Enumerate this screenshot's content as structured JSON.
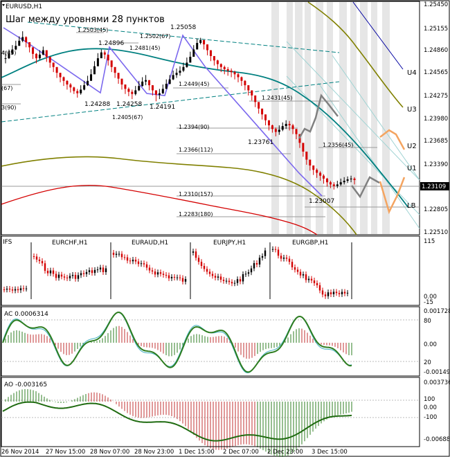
{
  "symbol_title": "EURUSD,H1",
  "annotation": "Шаг между уровнями 28 пунктов",
  "price_axis": [
    "1.25450",
    "1.25155",
    "1.24860",
    "1.24565",
    "1.24275",
    "1.23980",
    "1.23685",
    "1.23390",
    "1.22805",
    "1.22510"
  ],
  "current_price": "1.23109",
  "levels": [
    {
      "name": "U4",
      "text": "U4"
    },
    {
      "name": "U3",
      "text": "U3"
    },
    {
      "name": "U2",
      "text": "U2"
    },
    {
      "name": "U1",
      "text": "U1"
    },
    {
      "name": "LB",
      "text": "LB"
    }
  ],
  "price_labels": [
    {
      "text": "1.25058"
    },
    {
      "text": "1.24896"
    },
    {
      "text": "1.24288"
    },
    {
      "text": "1.24258"
    },
    {
      "text": "1.24191"
    },
    {
      "text": "1.23761"
    },
    {
      "text": "1.23007"
    }
  ],
  "small_labels": [
    {
      "text": "1.2503(45)"
    },
    {
      "text": "1.2502(67)"
    },
    {
      "text": "1.2481(45)"
    },
    {
      "text": "1.2449(45)"
    },
    {
      "text": "1.2431(45)"
    },
    {
      "text": "1.2405(67)"
    },
    {
      "text": "1.2394(90)"
    },
    {
      "text": "1.2366(112)"
    },
    {
      "text": "1.2356(45)"
    },
    {
      "text": "1.2310(157)"
    },
    {
      "text": "1.2283(180)"
    },
    {
      "text": "4(45)"
    },
    {
      "text": "(67)"
    },
    {
      "text": "3(90)"
    }
  ],
  "ifs_panel": {
    "title": "IFS",
    "pairs": [
      "EURCHF,H1",
      "EURAUD,H1",
      "EURJPY,H1",
      "EURGBP,H1"
    ],
    "axis": [
      "115",
      "0.00",
      "-15"
    ]
  },
  "ac_panel": {
    "title": "AC 0.0006314",
    "axis": [
      "0.001728",
      "80",
      "0.00",
      "20",
      "-0.001495"
    ]
  },
  "ao_panel": {
    "title": "AO -0.003165",
    "axis": [
      "0.003736",
      "100",
      "0.00",
      "-100",
      "-0.006885"
    ]
  },
  "time_axis": [
    "26 Nov 2014",
    "27 Nov 15:00",
    "28 Nov 07:00",
    "28 Nov 23:00",
    "1 Dec 15:00",
    "2 Dec 07:00",
    "2 Dec 23:00",
    "3 Dec 15:00"
  ],
  "colors": {
    "candle_up": "#000000",
    "candle_down": "#d40000",
    "teal_ma": "#008080",
    "olive_ma": "#808000",
    "red_ma": "#d40000",
    "zigzag": "#7b68ee",
    "forecast_gray": "#808080",
    "forecast_orange": "#f4a460"
  },
  "chart_data": {
    "type": "candlestick",
    "title": "EURUSD,H1",
    "ylim": [
      1.2237,
      1.2555
    ],
    "close": [
      1.2478,
      1.2484,
      1.249,
      1.2495,
      1.2502,
      1.2507,
      1.25,
      1.2493,
      1.2484,
      1.2478,
      1.2483,
      1.2489,
      1.248,
      1.2472,
      1.2466,
      1.2458,
      1.2452,
      1.2447,
      1.2442,
      1.2438,
      1.2433,
      1.243,
      1.2435,
      1.2441,
      1.2447,
      1.2456,
      1.2467,
      1.2478,
      1.2486,
      1.2483,
      1.2475,
      1.2466,
      1.2458,
      1.245,
      1.2442,
      1.2436,
      1.2432,
      1.2429,
      1.2434,
      1.244,
      1.2446,
      1.2448,
      1.2441,
      1.2434,
      1.2428,
      1.243,
      1.2436,
      1.2443,
      1.2449,
      1.2455,
      1.2458,
      1.2461,
      1.2466,
      1.2472,
      1.248,
      1.249,
      1.2499,
      1.2503,
      1.2497,
      1.2489,
      1.2481,
      1.2475,
      1.247,
      1.2466,
      1.2463,
      1.2461,
      1.2459,
      1.2456,
      1.2452,
      1.2447,
      1.2441,
      1.2434,
      1.2427,
      1.2418,
      1.2409,
      1.2401,
      1.2393,
      1.2386,
      1.2381,
      1.2377,
      1.238,
      1.2385,
      1.2388,
      1.2386,
      1.2381,
      1.2374,
      1.2362,
      1.235,
      1.2339,
      1.2331,
      1.2325,
      1.2321,
      1.2317,
      1.2313,
      1.2308,
      1.2305,
      1.2303,
      1.2305,
      1.2308,
      1.231,
      1.2312,
      1.2313,
      1.2311
    ],
    "high": [
      1.2485,
      1.249,
      1.2496,
      1.2502,
      1.2508,
      1.2515,
      1.2508,
      1.25,
      1.2492,
      1.2485,
      1.2489,
      1.2494,
      1.2488,
      1.2479,
      1.2472,
      1.2465,
      1.2458,
      1.2453,
      1.2448,
      1.2444,
      1.2439,
      1.2436,
      1.2441,
      1.2447,
      1.2454,
      1.2463,
      1.2474,
      1.2485,
      1.249,
      1.2489,
      1.2482,
      1.2473,
      1.2465,
      1.2457,
      1.2449,
      1.2442,
      1.2438,
      1.2435,
      1.244,
      1.2447,
      1.2452,
      1.2455,
      1.2448,
      1.2441,
      1.2434,
      1.2436,
      1.2442,
      1.2449,
      1.2455,
      1.2461,
      1.2464,
      1.2467,
      1.2472,
      1.2479,
      1.2487,
      1.2496,
      1.2505,
      1.2506,
      1.2503,
      1.2495,
      1.2487,
      1.2481,
      1.2476,
      1.2471,
      1.2468,
      1.2466,
      1.2464,
      1.2461,
      1.2458,
      1.2453,
      1.2448,
      1.2441,
      1.2434,
      1.2426,
      1.2416,
      1.2408,
      1.24,
      1.2392,
      1.2387,
      1.2383,
      1.2386,
      1.239,
      1.2393,
      1.2392,
      1.2388,
      1.2381,
      1.237,
      1.2357,
      1.2346,
      1.2337,
      1.2331,
      1.2327,
      1.2323,
      1.2319,
      1.2314,
      1.231,
      1.2308,
      1.231,
      1.2313,
      1.2315,
      1.2316,
      1.2317,
      1.2315
    ],
    "low": [
      1.2471,
      1.2477,
      1.2483,
      1.2489,
      1.2495,
      1.25,
      1.2493,
      1.2486,
      1.2477,
      1.2471,
      1.2476,
      1.2482,
      1.2473,
      1.2465,
      1.2459,
      1.2451,
      1.2445,
      1.244,
      1.2435,
      1.2431,
      1.2429,
      1.2424,
      1.2428,
      1.2434,
      1.244,
      1.2449,
      1.246,
      1.2471,
      1.248,
      1.2477,
      1.2468,
      1.2459,
      1.2451,
      1.2443,
      1.2435,
      1.2429,
      1.2426,
      1.2422,
      1.2427,
      1.2433,
      1.2439,
      1.2441,
      1.2434,
      1.2427,
      1.2419,
      1.2422,
      1.2429,
      1.2436,
      1.2442,
      1.2448,
      1.2451,
      1.2454,
      1.2459,
      1.2465,
      1.2473,
      1.2483,
      1.2492,
      1.2497,
      1.249,
      1.2482,
      1.2474,
      1.2468,
      1.2463,
      1.2459,
      1.2456,
      1.2454,
      1.2452,
      1.2449,
      1.2445,
      1.244,
      1.2434,
      1.2427,
      1.242,
      1.2411,
      1.2402,
      1.2394,
      1.2386,
      1.2379,
      1.2376,
      1.2371,
      1.2373,
      1.2378,
      1.2381,
      1.2379,
      1.2374,
      1.2367,
      1.2355,
      1.2343,
      1.2332,
      1.2324,
      1.2318,
      1.2314,
      1.231,
      1.2306,
      1.2302,
      1.23,
      1.2298,
      1.23,
      1.2303,
      1.2305,
      1.2307,
      1.2308,
      1.2305
    ]
  }
}
